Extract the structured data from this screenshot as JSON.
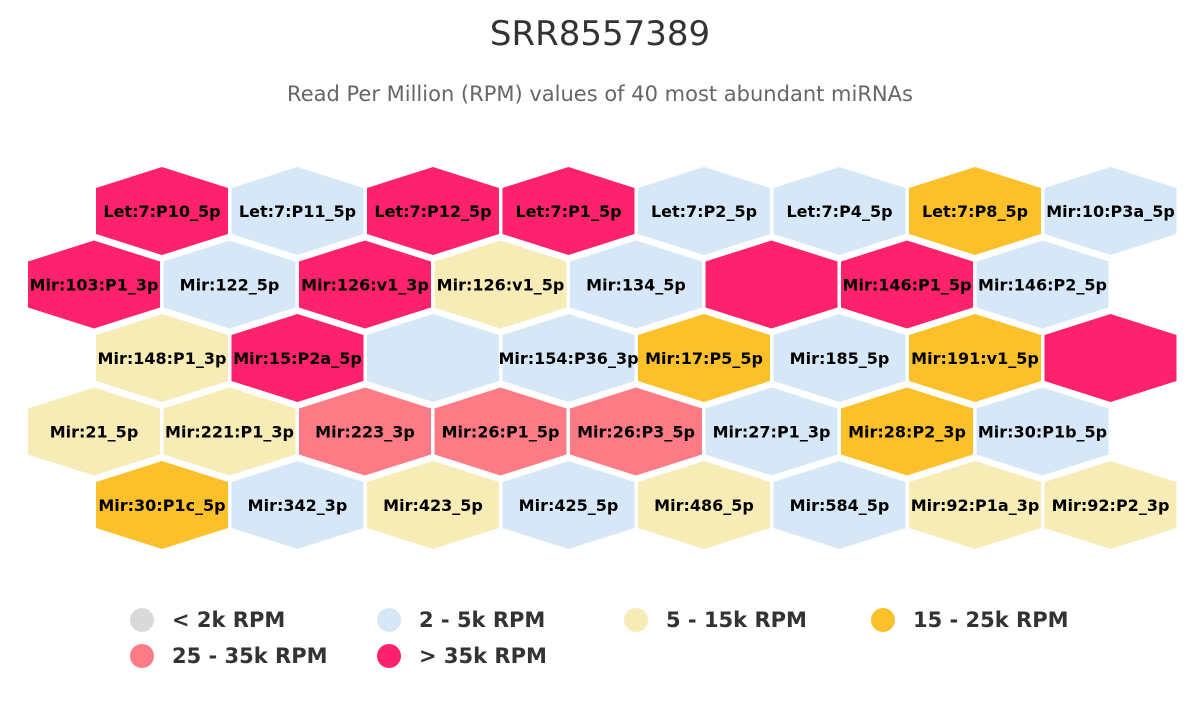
{
  "title": "SRR8557389",
  "subtitle": "Read Per Million (RPM) values of 40 most abundant miRNAs",
  "colors": {
    "lt2k": "#d9d9d9",
    "c2_5k": "#d6e8f7",
    "c5_15k": "#f7ebb6",
    "c15_25k": "#fcc12a",
    "c25_35k": "#fc7b85",
    "gt35k": "#fd216e"
  },
  "legend": [
    {
      "label": "< 2k RPM",
      "color_key": "lt2k"
    },
    {
      "label": "2 - 5k RPM",
      "color_key": "c2_5k"
    },
    {
      "label": "5 - 15k RPM",
      "color_key": "c5_15k"
    },
    {
      "label": "15 - 25k RPM",
      "color_key": "c15_25k"
    },
    {
      "label": "25 - 35k RPM",
      "color_key": "c25_35k"
    },
    {
      "label": "> 35k RPM",
      "color_key": "gt35k"
    }
  ],
  "chart_data": {
    "type": "heatmap",
    "title": "SRR8557389",
    "subtitle": "Read Per Million (RPM) values of 40 most abundant miRNAs",
    "layout": "hexagonal tilemap",
    "legend_position": "bottom",
    "rows": [
      [
        {
          "label": "Let:7:P10_5p",
          "class": "gt35k"
        },
        {
          "label": "Let:7:P11_5p",
          "class": "c2_5k"
        },
        {
          "label": "Let:7:P12_5p",
          "class": "gt35k"
        },
        {
          "label": "Let:7:P1_5p",
          "class": "gt35k"
        },
        {
          "label": "Let:7:P2_5p",
          "class": "c2_5k"
        },
        {
          "label": "Let:7:P4_5p",
          "class": "c2_5k"
        },
        {
          "label": "Let:7:P8_5p",
          "class": "c15_25k"
        },
        {
          "label": "Mir:10:P3a_5p",
          "class": "c2_5k"
        }
      ],
      [
        {
          "label": "Mir:103:P1_3p",
          "class": "gt35k"
        },
        {
          "label": "Mir:122_5p",
          "class": "c2_5k"
        },
        {
          "label": "Mir:126:v1_3p",
          "class": "gt35k"
        },
        {
          "label": "Mir:126:v1_5p",
          "class": "c5_15k"
        },
        {
          "label": "Mir:134_5p",
          "class": "c2_5k"
        },
        {
          "label": "",
          "class": "gt35k"
        },
        {
          "label": "Mir:146:P1_5p",
          "class": "gt35k"
        },
        {
          "label": "Mir:146:P2_5p",
          "class": "c2_5k"
        }
      ],
      [
        {
          "label": "Mir:148:P1_3p",
          "class": "c5_15k"
        },
        {
          "label": "Mir:15:P2a_5p",
          "class": "gt35k"
        },
        {
          "label": "",
          "class": "c2_5k"
        },
        {
          "label": "Mir:154:P36_3p",
          "class": "c2_5k"
        },
        {
          "label": "Mir:17:P5_5p",
          "class": "c15_25k"
        },
        {
          "label": "Mir:185_5p",
          "class": "c2_5k"
        },
        {
          "label": "Mir:191:v1_5p",
          "class": "c15_25k"
        },
        {
          "label": "",
          "class": "gt35k"
        }
      ],
      [
        {
          "label": "Mir:21_5p",
          "class": "c5_15k"
        },
        {
          "label": "Mir:221:P1_3p",
          "class": "c5_15k"
        },
        {
          "label": "Mir:223_3p",
          "class": "c25_35k"
        },
        {
          "label": "Mir:26:P1_5p",
          "class": "c25_35k"
        },
        {
          "label": "Mir:26:P3_5p",
          "class": "c25_35k"
        },
        {
          "label": "Mir:27:P1_3p",
          "class": "c2_5k"
        },
        {
          "label": "Mir:28:P2_3p",
          "class": "c15_25k"
        },
        {
          "label": "Mir:30:P1b_5p",
          "class": "c2_5k"
        }
      ],
      [
        {
          "label": "Mir:30:P1c_5p",
          "class": "c15_25k"
        },
        {
          "label": "Mir:342_3p",
          "class": "c2_5k"
        },
        {
          "label": "Mir:423_5p",
          "class": "c5_15k"
        },
        {
          "label": "Mir:425_5p",
          "class": "c2_5k"
        },
        {
          "label": "Mir:486_5p",
          "class": "c5_15k"
        },
        {
          "label": "Mir:584_5p",
          "class": "c2_5k"
        },
        {
          "label": "Mir:92:P1a_3p",
          "class": "c5_15k"
        },
        {
          "label": "Mir:92:P2_3p",
          "class": "c5_15k"
        }
      ]
    ]
  }
}
